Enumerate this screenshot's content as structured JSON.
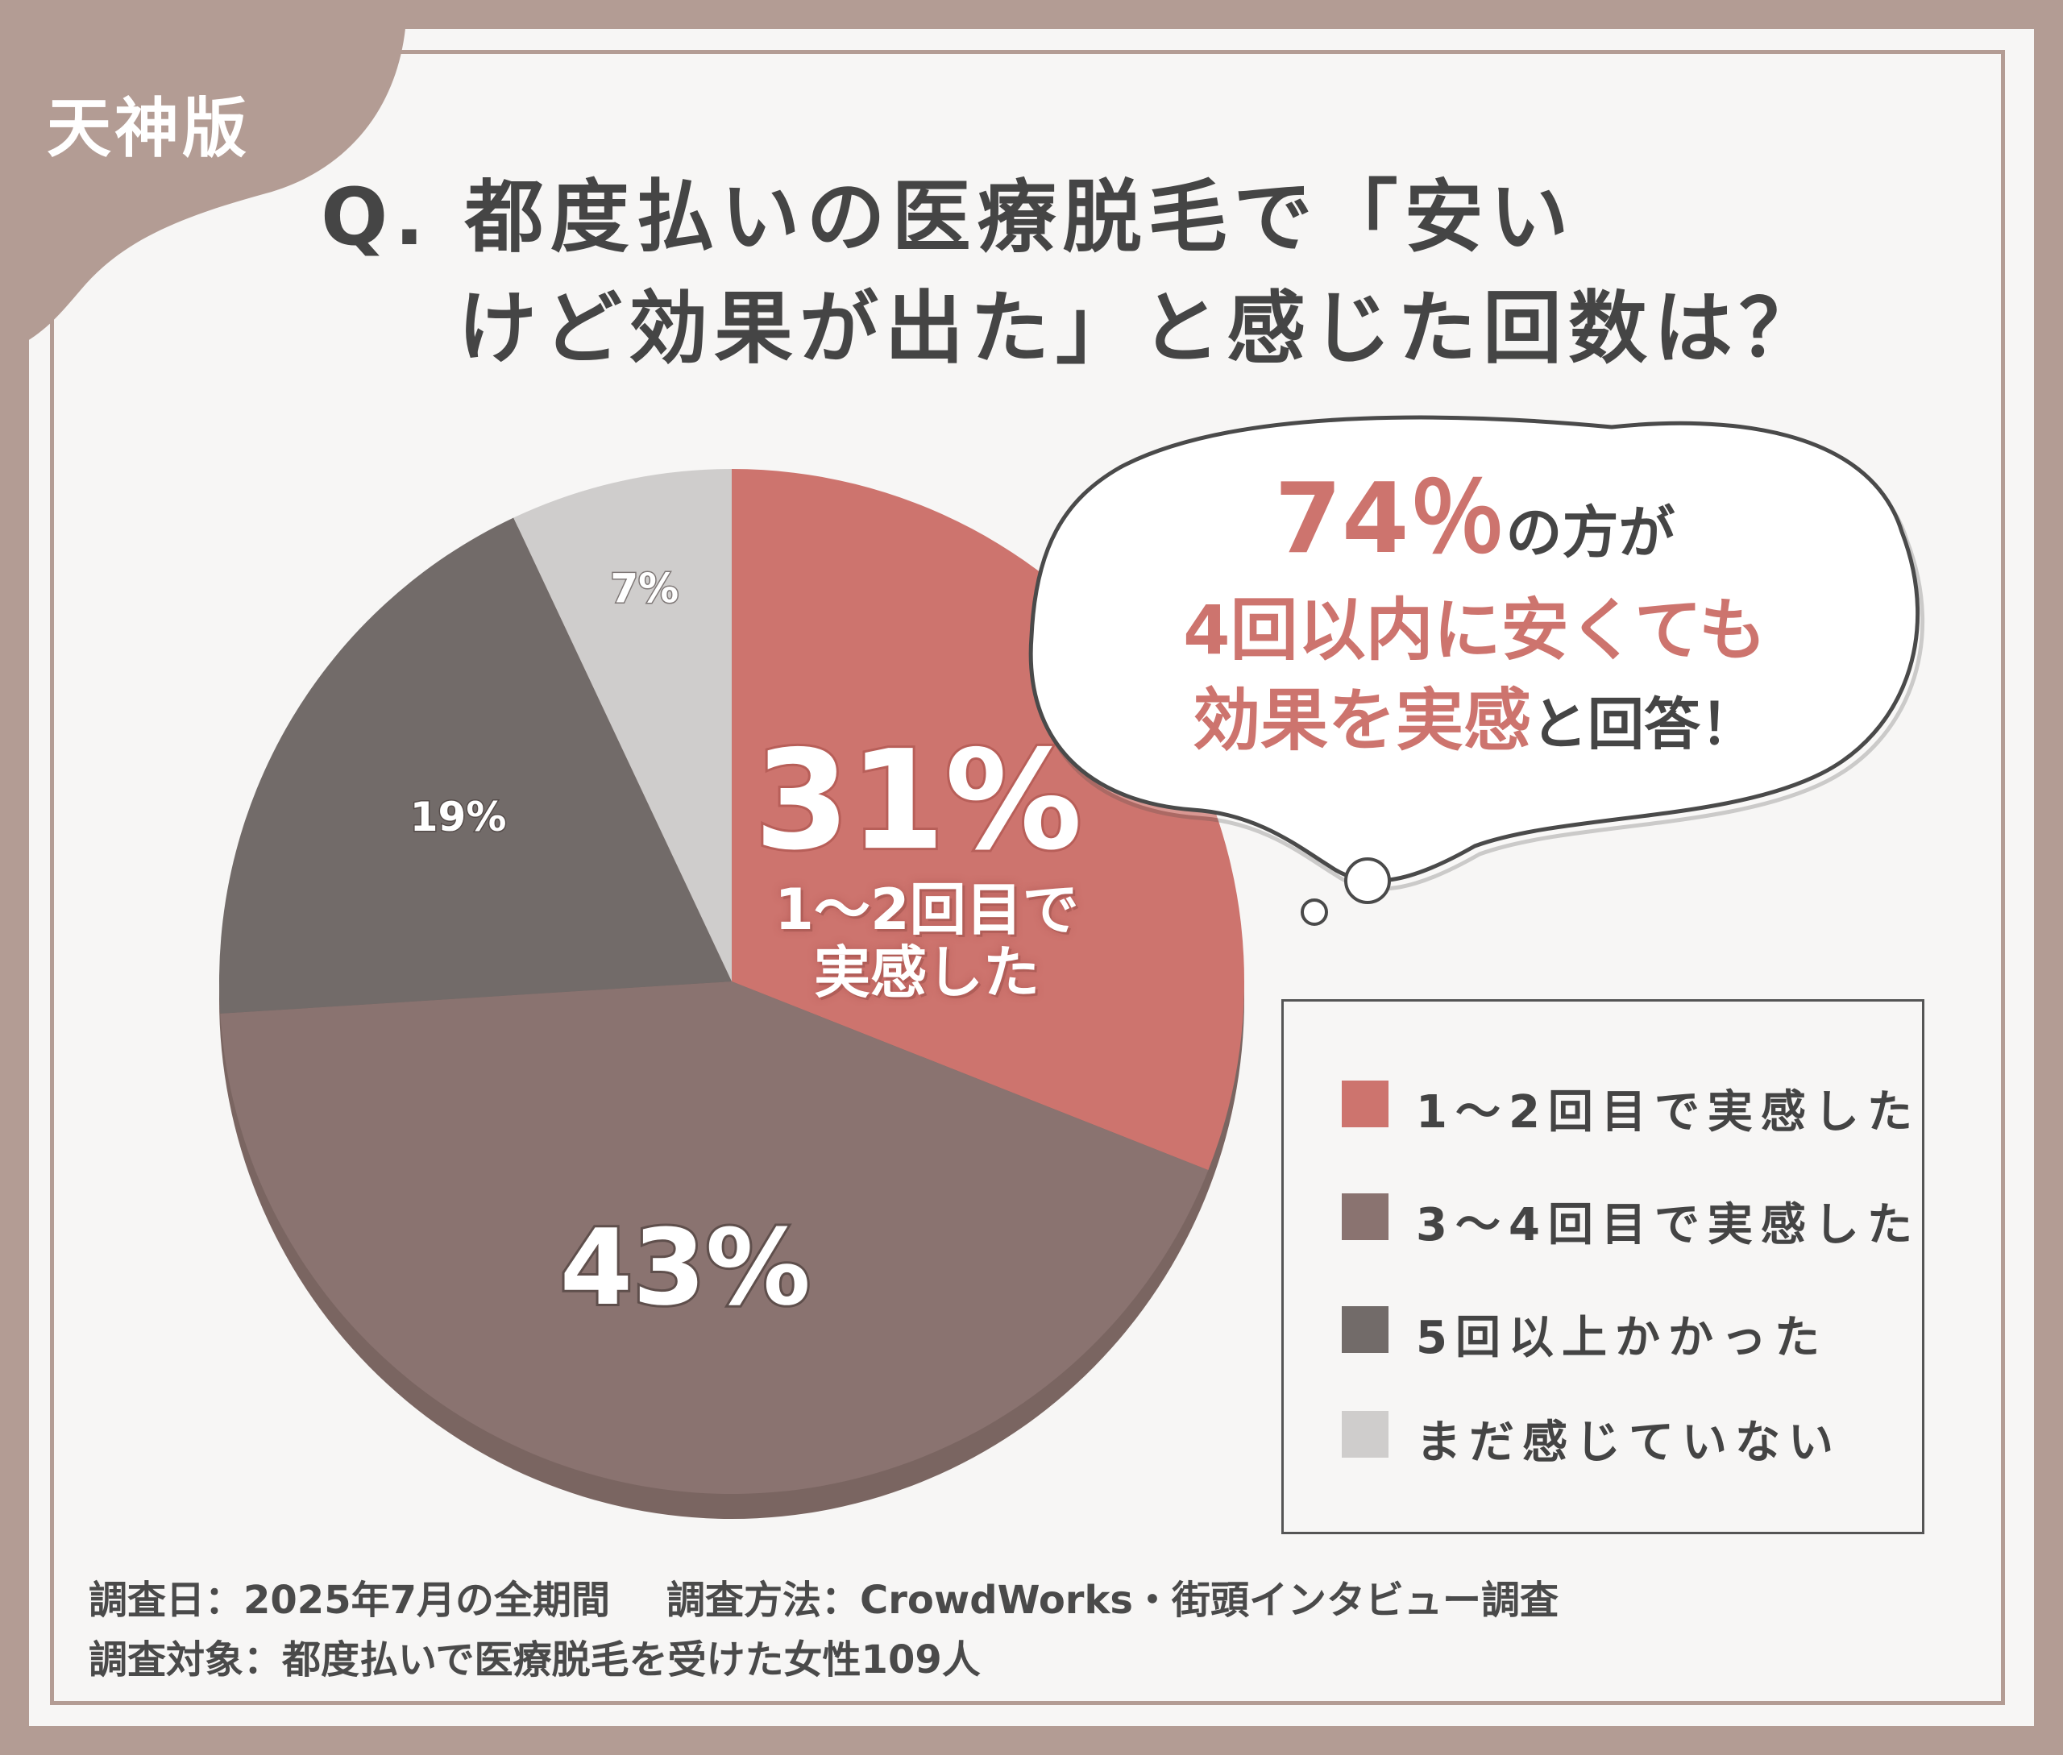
{
  "badge": "天神版",
  "question": {
    "line1": "Q. 都度払いの医療脱毛で「安い",
    "line2": "けど効果が出た」と感じた回数は？"
  },
  "callout": {
    "pct": "74％",
    "line1_rest": "の方が",
    "line2": "4回以内に安くても",
    "line3_highlight": "効果を実感",
    "line3_rest": "と回答！"
  },
  "center_label": {
    "line1": "1〜2回目で",
    "line2": "実感した"
  },
  "footer": {
    "date": "調査日：2025年7月の全期間",
    "method": "調査方法：CrowdWorks・街頭インタビュー調査",
    "target": "調査対象：都度払いで医療脱毛を受けた女性109人"
  },
  "colors": {
    "s1": "#cd746e",
    "s2": "#8a7370",
    "s3": "#726b69",
    "s4": "#cfcdcc",
    "frame": "#b39c94"
  },
  "chart_data": {
    "type": "pie",
    "title": "",
    "categories": [
      "1〜2回目で実感した",
      "3〜4回目で実感した",
      "5回以上かかった",
      "まだ感じていない"
    ],
    "values": [
      31,
      43,
      19,
      7
    ],
    "value_labels": [
      "31%",
      "43%",
      "19%",
      "7%"
    ],
    "unit": "%",
    "start": "12 o'clock, clockwise",
    "legend": "bottom-right"
  }
}
